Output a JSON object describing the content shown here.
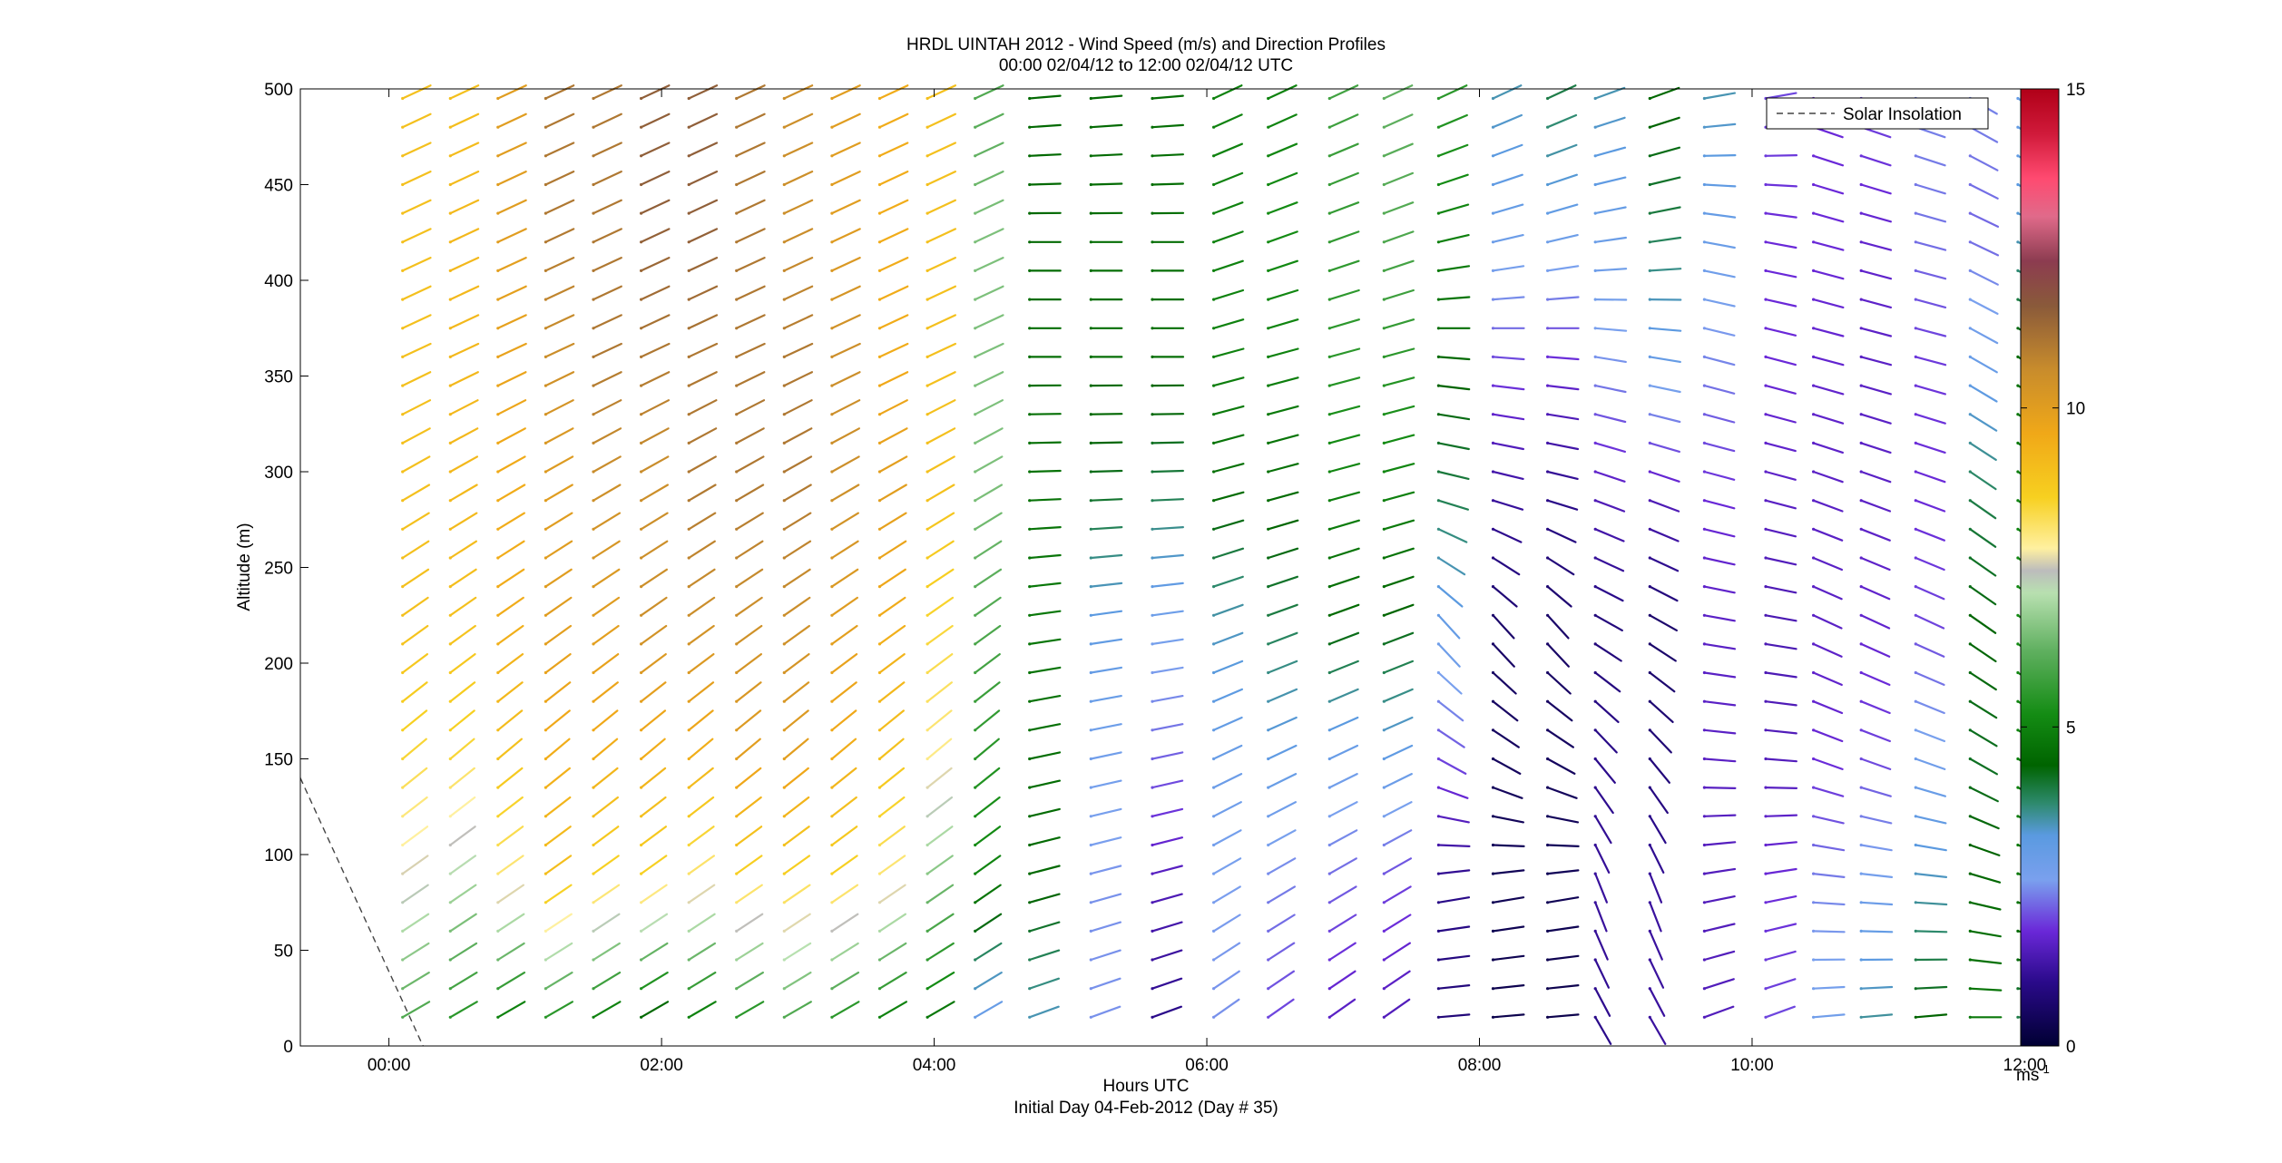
{
  "chart_data": {
    "type": "wind-profile-vectors",
    "title": "HRDL UINTAH 2012 - Wind Speed (m/s) and Direction Profiles",
    "subtitle": "00:00 02/04/12 to 12:00 02/04/12  UTC",
    "xlabel": "Hours UTC",
    "xlabel2": "Initial Day 04-Feb-2012 (Day # 35)",
    "ylabel": "Altitude (m)",
    "xlim_hours": [
      -0.65,
      12.25
    ],
    "ylim": [
      0,
      500
    ],
    "x_ticks": [
      {
        "value": 0,
        "label": "00:00"
      },
      {
        "value": 2,
        "label": "02:00"
      },
      {
        "value": 4,
        "label": "04:00"
      },
      {
        "value": 6,
        "label": "06:00"
      },
      {
        "value": 8,
        "label": "08:00"
      },
      {
        "value": 10,
        "label": "10:00"
      },
      {
        "value": 12,
        "label": "12:00"
      }
    ],
    "y_ticks": [
      0,
      50,
      100,
      150,
      200,
      250,
      300,
      350,
      400,
      450,
      500
    ],
    "legend": {
      "entry": "Solar Insolation",
      "style": "dashed",
      "color": "#444444",
      "location": "top-right"
    },
    "solar_insolation": [
      {
        "hour": -0.65,
        "y": 140
      },
      {
        "hour": 0.25,
        "y": 0
      }
    ],
    "colorbar": {
      "min": 0,
      "max": 15,
      "ticks": [
        0,
        5,
        10,
        15
      ],
      "unit_label": "ms",
      "unit_exp": "-1",
      "stops": [
        {
          "v": 0.0,
          "c": "#000033"
        },
        {
          "v": 1.0,
          "c": "#2a0a8a"
        },
        {
          "v": 1.8,
          "c": "#6a28d8"
        },
        {
          "v": 2.6,
          "c": "#7aa0ee"
        },
        {
          "v": 3.3,
          "c": "#5a9ae0"
        },
        {
          "v": 3.8,
          "c": "#2e8a6e"
        },
        {
          "v": 4.4,
          "c": "#006400"
        },
        {
          "v": 5.2,
          "c": "#148c14"
        },
        {
          "v": 6.2,
          "c": "#60b060"
        },
        {
          "v": 7.1,
          "c": "#b8e0b0"
        },
        {
          "v": 7.45,
          "c": "#bcbcbc"
        },
        {
          "v": 7.8,
          "c": "#fff0a0"
        },
        {
          "v": 8.6,
          "c": "#f7d020"
        },
        {
          "v": 9.6,
          "c": "#f0a818"
        },
        {
          "v": 10.6,
          "c": "#c88c2c"
        },
        {
          "v": 11.6,
          "c": "#8a5a3a"
        },
        {
          "v": 12.3,
          "c": "#8c3c50"
        },
        {
          "v": 13.0,
          "c": "#e06a8a"
        },
        {
          "v": 13.6,
          "c": "#ff4a70"
        },
        {
          "v": 14.3,
          "c": "#d01a3a"
        },
        {
          "v": 15.0,
          "c": "#b00018"
        }
      ]
    },
    "vector_grid": {
      "hours": [
        0.1,
        0.45,
        0.8,
        1.15,
        1.5,
        1.85,
        2.2,
        2.55,
        2.9,
        3.25,
        3.6,
        3.95,
        4.3,
        4.7,
        5.15,
        5.6,
        6.05,
        6.45,
        6.9,
        7.3,
        7.7,
        8.1,
        8.5,
        8.85,
        9.25,
        9.65,
        10.1,
        10.45,
        10.8,
        11.2,
        11.6,
        11.95
      ],
      "altitudes": [
        15,
        30,
        45,
        60,
        75,
        90,
        105,
        120,
        135,
        150,
        165,
        180,
        195,
        210,
        225,
        240,
        255,
        270,
        285,
        300,
        315,
        330,
        345,
        360,
        375,
        390,
        405,
        420,
        435,
        450,
        465,
        480,
        495
      ],
      "speed_profiles": [
        {
          "hour": 0.1,
          "speeds": [
            6.0,
            7.5,
            8.5,
            9.0,
            9.0,
            9.0,
            9.0,
            9.0
          ]
        },
        {
          "hour": 0.45,
          "speeds": [
            5.5,
            7.0,
            8.5,
            9.0,
            9.2,
            9.2,
            9.2,
            9.0
          ]
        },
        {
          "hour": 0.8,
          "speeds": [
            5.0,
            8.0,
            9.0,
            9.5,
            9.5,
            9.8,
            10.0,
            10.0
          ]
        },
        {
          "hour": 1.15,
          "speeds": [
            5.5,
            9.0,
            9.5,
            10.0,
            10.0,
            10.5,
            11.0,
            11.0
          ]
        },
        {
          "hour": 1.5,
          "speeds": [
            5.0,
            8.5,
            9.5,
            10.0,
            10.5,
            11.0,
            11.0,
            11.0
          ]
        },
        {
          "hour": 1.85,
          "speeds": [
            4.5,
            8.5,
            9.5,
            10.5,
            10.5,
            11.0,
            11.5,
            11.5
          ]
        },
        {
          "hour": 2.2,
          "speeds": [
            5.0,
            8.0,
            9.5,
            10.5,
            11.0,
            11.0,
            11.5,
            11.5
          ]
        },
        {
          "hour": 2.55,
          "speeds": [
            5.5,
            8.5,
            10.0,
            10.5,
            11.0,
            11.0,
            11.0,
            11.0
          ]
        },
        {
          "hour": 2.9,
          "speeds": [
            6.0,
            8.5,
            10.0,
            10.5,
            11.0,
            11.0,
            10.5,
            10.5
          ]
        },
        {
          "hour": 3.25,
          "speeds": [
            5.5,
            8.5,
            9.5,
            10.0,
            10.5,
            10.5,
            10.0,
            10.0
          ]
        },
        {
          "hour": 3.6,
          "speeds": [
            5.0,
            8.0,
            9.0,
            9.5,
            10.0,
            9.5,
            9.5,
            9.5
          ]
        },
        {
          "hour": 3.95,
          "speeds": [
            4.8,
            6.5,
            8.0,
            8.5,
            9.0,
            9.0,
            9.0,
            9.0
          ]
        },
        {
          "hour": 4.3,
          "speeds": [
            3.0,
            5.0,
            5.5,
            6.0,
            6.5,
            6.5,
            6.5,
            6.0
          ]
        },
        {
          "hour": 4.7,
          "speeds": [
            3.5,
            4.5,
            4.6,
            4.8,
            4.7,
            4.6,
            4.5,
            4.5
          ]
        },
        {
          "hour": 5.15,
          "speeds": [
            2.5,
            2.5,
            2.8,
            3.2,
            4.2,
            4.6,
            4.6,
            4.5
          ]
        },
        {
          "hour": 5.6,
          "speeds": [
            1.0,
            1.5,
            2.2,
            2.8,
            4.0,
            4.6,
            4.6,
            4.6
          ]
        },
        {
          "hour": 6.05,
          "speeds": [
            2.5,
            2.6,
            3.0,
            3.5,
            4.6,
            5.0,
            5.0,
            5.0
          ]
        },
        {
          "hour": 6.45,
          "speeds": [
            2.0,
            2.4,
            3.2,
            4.0,
            4.6,
            5.0,
            5.2,
            5.0
          ]
        },
        {
          "hour": 6.9,
          "speeds": [
            1.6,
            2.2,
            3.0,
            4.5,
            5.0,
            5.5,
            5.6,
            5.8
          ]
        },
        {
          "hour": 7.3,
          "speeds": [
            1.5,
            2.0,
            3.2,
            4.4,
            5.0,
            5.5,
            6.0,
            6.2
          ]
        },
        {
          "hour": 7.7,
          "speeds": [
            0.8,
            1.0,
            2.0,
            3.0,
            4.0,
            4.5,
            5.0,
            5.5
          ]
        },
        {
          "hour": 8.1,
          "speeds": [
            0.3,
            0.4,
            0.5,
            0.6,
            1.2,
            2.0,
            3.0,
            3.5
          ]
        },
        {
          "hour": 8.5,
          "speeds": [
            0.3,
            0.4,
            0.5,
            0.6,
            1.0,
            1.8,
            3.0,
            4.0
          ]
        },
        {
          "hour": 8.85,
          "speeds": [
            1.0,
            1.2,
            1.0,
            0.8,
            1.5,
            2.5,
            3.0,
            3.5
          ]
        },
        {
          "hour": 9.25,
          "speeds": [
            1.2,
            1.2,
            0.8,
            0.6,
            1.5,
            3.0,
            4.0,
            4.5
          ]
        },
        {
          "hour": 9.65,
          "speeds": [
            1.5,
            1.5,
            1.6,
            1.6,
            1.8,
            2.4,
            3.0,
            3.5
          ]
        },
        {
          "hour": 10.1,
          "speeds": [
            2.0,
            1.8,
            1.5,
            1.4,
            1.6,
            1.8,
            1.8,
            2.0
          ]
        },
        {
          "hour": 10.45,
          "speeds": [
            2.8,
            2.4,
            1.8,
            1.6,
            1.6,
            1.7,
            1.8,
            1.8
          ]
        },
        {
          "hour": 10.8,
          "speeds": [
            3.6,
            2.8,
            2.0,
            1.7,
            1.6,
            1.6,
            1.7,
            2.0
          ]
        },
        {
          "hour": 11.2,
          "speeds": [
            4.4,
            3.5,
            2.8,
            2.0,
            1.8,
            1.9,
            2.3,
            2.4
          ]
        },
        {
          "hour": 11.6,
          "speeds": [
            4.8,
            4.5,
            4.2,
            4.4,
            4.0,
            3.0,
            2.2,
            2.4
          ]
        },
        {
          "hour": 11.95,
          "speeds": [
            4.0,
            4.8,
            5.0,
            5.2,
            5.0,
            4.6,
            3.4,
            3.0
          ]
        }
      ],
      "direction_profiles": [
        {
          "from_hour": 0.0,
          "to_hour": 4.5,
          "dirs": [
            240,
            235,
            230,
            235,
            240,
            245,
            245,
            245
          ]
        },
        {
          "from_hour": 4.5,
          "to_hour": 5.8,
          "dirs": [
            250,
            255,
            258,
            262,
            268,
            270,
            270,
            265
          ]
        },
        {
          "from_hour": 5.8,
          "to_hour": 7.5,
          "dirs": [
            235,
            240,
            245,
            250,
            255,
            255,
            250,
            245
          ]
        },
        {
          "from_hour": 7.5,
          "to_hour": 8.6,
          "dirs": [
            265,
            260,
            300,
            320,
            285,
            275,
            255,
            245
          ]
        },
        {
          "from_hour": 8.6,
          "to_hour": 9.5,
          "dirs": [
            330,
            340,
            320,
            300,
            290,
            280,
            260,
            250
          ]
        },
        {
          "from_hour": 9.5,
          "to_hour": 10.3,
          "dirs": [
            250,
            260,
            275,
            280,
            285,
            285,
            280,
            260
          ]
        },
        {
          "from_hour": 10.3,
          "to_hour": 11.4,
          "dirs": [
            265,
            275,
            290,
            295,
            290,
            285,
            285,
            290
          ]
        },
        {
          "from_hour": 11.4,
          "to_hour": 12.2,
          "dirs": [
            270,
            285,
            300,
            305,
            305,
            300,
            295,
            300
          ]
        }
      ]
    }
  }
}
